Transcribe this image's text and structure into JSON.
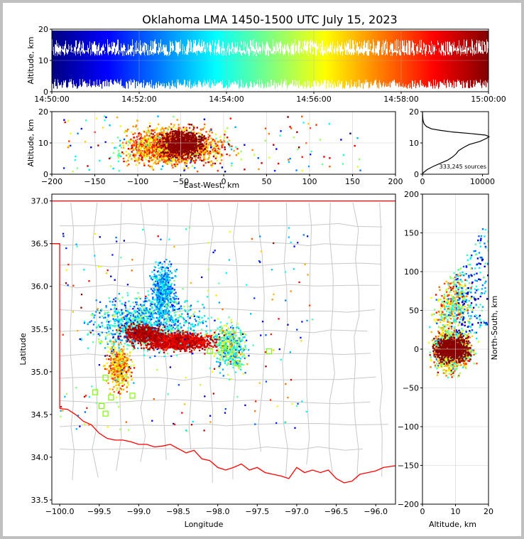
{
  "title": "Oklahoma LMA 1450-1500 UTC July 15, 2023",
  "chart_data": [
    {
      "type": "scatter",
      "panel": "altitude-time",
      "ylabel": "Altitude, km",
      "xlim": [
        "14:50:00",
        "15:00:00"
      ],
      "ylim": [
        0,
        20
      ],
      "xticks": [
        "14:50:00",
        "14:52:00",
        "14:54:00",
        "14:56:00",
        "14:58:00",
        "15:00:00"
      ],
      "yticks": [
        "0",
        "10",
        "20"
      ],
      "colormap": "jet (by time)",
      "grid": true
    },
    {
      "type": "scatter",
      "panel": "altitude-east-west",
      "xlabel": "East-West, km",
      "ylabel": "Altitude, km",
      "xlim": [
        -200,
        200
      ],
      "ylim": [
        0,
        20
      ],
      "xticks": [
        "−200",
        "−150",
        "−100",
        "−50",
        "0",
        "50",
        "100",
        "150",
        "200"
      ],
      "yticks": [
        "0",
        "10",
        "20"
      ],
      "grid": true
    },
    {
      "type": "line",
      "panel": "altitude-histogram",
      "xlim": [
        0,
        11000
      ],
      "ylim": [
        0,
        20
      ],
      "xticks": [
        "0",
        "10000"
      ],
      "yticks": [
        "0",
        "10",
        "20"
      ],
      "annotation": "333,245 sources",
      "profile": [
        [
          0,
          0
        ],
        [
          150,
          0.5
        ],
        [
          800,
          1.5
        ],
        [
          1800,
          2.5
        ],
        [
          3000,
          3.5
        ],
        [
          4200,
          4.5
        ],
        [
          5000,
          5.5
        ],
        [
          5600,
          6.5
        ],
        [
          6000,
          7.5
        ],
        [
          6800,
          8.5
        ],
        [
          7800,
          9.5
        ],
        [
          9600,
          10.5
        ],
        [
          10700,
          11.5
        ],
        [
          11100,
          12.0
        ],
        [
          10500,
          12.5
        ],
        [
          8000,
          13.0
        ],
        [
          5000,
          13.5
        ],
        [
          3000,
          14.0
        ],
        [
          1500,
          14.5
        ],
        [
          700,
          15.2
        ],
        [
          300,
          16
        ],
        [
          120,
          17
        ],
        [
          50,
          18
        ],
        [
          20,
          19
        ],
        [
          5,
          20
        ]
      ]
    },
    {
      "type": "scatter",
      "panel": "plan-view",
      "xlabel": "Longitude",
      "ylabel": "Latitude",
      "xlim": [
        -100.1,
        -95.75
      ],
      "ylim": [
        33.45,
        37.08
      ],
      "xticks": [
        "−100.0",
        "−99.5",
        "−99.0",
        "−98.5",
        "−98.0",
        "−97.5",
        "−97.0",
        "−96.5",
        "−96.0"
      ],
      "yticks": [
        "33.5",
        "34.0",
        "34.5",
        "35.0",
        "35.5",
        "36.0",
        "36.5",
        "37.0"
      ],
      "stations": [
        [
          -99.55,
          34.76
        ],
        [
          -99.47,
          34.6
        ],
        [
          -99.42,
          34.51
        ],
        [
          -99.35,
          34.7
        ],
        [
          -99.08,
          34.72
        ],
        [
          -99.42,
          34.93
        ],
        [
          -98.1,
          35.24
        ],
        [
          -97.92,
          35.28
        ],
        [
          -97.35,
          35.24
        ],
        [
          -97.75,
          35.1
        ]
      ],
      "state_border_color": "#ff0000",
      "county_line_color": "#c8c8c8"
    },
    {
      "type": "scatter",
      "panel": "north-south-altitude",
      "xlabel": "Altitude, km",
      "ylabel": "North-South, km",
      "xlim": [
        0,
        20
      ],
      "ylim": [
        -200,
        200
      ],
      "xticks": [
        "0",
        "10",
        "20"
      ],
      "yticks": [
        "−200",
        "−150",
        "−100",
        "−50",
        "0",
        "50",
        "100",
        "150",
        "200"
      ],
      "grid": true
    }
  ]
}
